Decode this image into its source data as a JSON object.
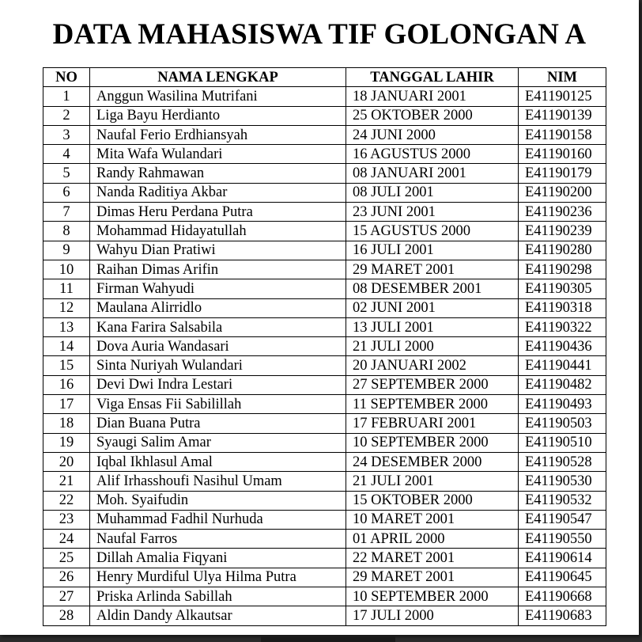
{
  "title": "DATA MAHASISWA TIF GOLONGAN A",
  "table": {
    "headers": [
      "NO",
      "NAMA LENGKAP",
      "TANGGAL LAHIR",
      "NIM"
    ],
    "rows": [
      [
        "1",
        "Anggun Wasilina Mutrifani",
        "18 JANUARI 2001",
        "E41190125"
      ],
      [
        "2",
        "Liga Bayu Herdianto",
        "25 OKTOBER 2000",
        "E41190139"
      ],
      [
        "3",
        "Naufal Ferio Erdhiansyah",
        "24 JUNI 2000",
        "E41190158"
      ],
      [
        "4",
        "Mita Wafa Wulandari",
        "16 AGUSTUS 2000",
        "E41190160"
      ],
      [
        "5",
        "Randy Rahmawan",
        "08 JANUARI 2001",
        "E41190179"
      ],
      [
        "6",
        "Nanda Raditiya Akbar",
        "08 JULI 2001",
        "E41190200"
      ],
      [
        "7",
        "Dimas Heru Perdana Putra",
        "23 JUNI 2001",
        "E41190236"
      ],
      [
        "8",
        "Mohammad Hidayatullah",
        "15 AGUSTUS 2000",
        "E41190239"
      ],
      [
        "9",
        "Wahyu Dian Pratiwi",
        "16 JULI 2001",
        "E41190280"
      ],
      [
        "10",
        "Raihan Dimas Arifin",
        "29 MARET 2001",
        "E41190298"
      ],
      [
        "11",
        "Firman Wahyudi",
        "08 DESEMBER 2001",
        "E41190305"
      ],
      [
        "12",
        "Maulana Alirridlo",
        "02 JUNI 2001",
        "E41190318"
      ],
      [
        "13",
        "Kana Farira Salsabila",
        "13 JULI 2001",
        "E41190322"
      ],
      [
        "14",
        "Dova Auria Wandasari",
        "21 JULI 2000",
        "E41190436"
      ],
      [
        "15",
        "Sinta Nuriyah Wulandari",
        "20 JANUARI 2002",
        "E41190441"
      ],
      [
        "16",
        "Devi Dwi Indra Lestari",
        "27 SEPTEMBER 2000",
        "E41190482"
      ],
      [
        "17",
        "Viga Ensas Fii Sabilillah",
        "11 SEPTEMBER 2000",
        "E41190493"
      ],
      [
        "18",
        "Dian Buana Putra",
        "17 FEBRUARI 2001",
        "E41190503"
      ],
      [
        "19",
        "Syaugi Salim Amar",
        "10 SEPTEMBER 2000",
        "E41190510"
      ],
      [
        "20",
        "Iqbal Ikhlasul Amal",
        "24 DESEMBER 2000",
        "E41190528"
      ],
      [
        "21",
        "Alif Irhasshoufi Nasihul Umam",
        "21 JULI 2001",
        "E41190530"
      ],
      [
        "22",
        "Moh. Syaifudin",
        "15 OKTOBER 2000",
        "E41190532"
      ],
      [
        "23",
        "Muhammad Fadhil Nurhuda",
        "10 MARET 2001",
        "E41190547"
      ],
      [
        "24",
        "Naufal Farros",
        "01 APRIL 2000",
        "E41190550"
      ],
      [
        "25",
        "Dillah Amalia Fiqyani",
        "22 MARET 2001",
        "E41190614"
      ],
      [
        "26",
        "Henry Murdiful Ulya Hilma Putra",
        "29 MARET 2001",
        "E41190645"
      ],
      [
        "27",
        "Priska Arlinda Sabillah",
        "10 SEPTEMBER 2000",
        "E41190668"
      ],
      [
        "28",
        "Aldin Dandy Alkautsar",
        "17 JULI 2000",
        "E41190683"
      ]
    ]
  }
}
